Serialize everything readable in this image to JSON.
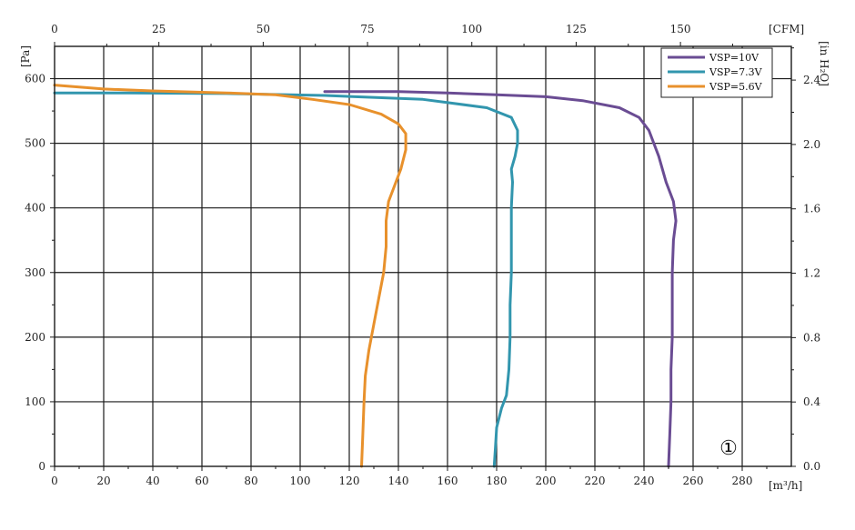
{
  "chart_data": {
    "type": "line",
    "title": "",
    "xlabel": "[m³/h]",
    "ylabel": "[Pa]",
    "x2label": "[CFM]",
    "y2label": "[in H₂O]",
    "xlim": [
      0,
      300
    ],
    "ylim": [
      0,
      650
    ],
    "x_ticks": [
      0,
      20,
      40,
      60,
      80,
      100,
      120,
      140,
      160,
      180,
      200,
      220,
      240,
      260,
      280
    ],
    "y_ticks": [
      0,
      100,
      200,
      300,
      400,
      500,
      600
    ],
    "x2_ticks": [
      0,
      25,
      50,
      75,
      100,
      125,
      150
    ],
    "y2_ticks": [
      "0.0",
      "0.4",
      "0.8",
      "1.2",
      "1.6",
      "2.0",
      "2.4"
    ],
    "grid": true,
    "legend_position": "top-right",
    "annotation": "①",
    "series": [
      {
        "name": "VSP=10V",
        "color": "#6a4c93",
        "points": [
          [
            250,
            0
          ],
          [
            250.5,
            50
          ],
          [
            251,
            100
          ],
          [
            251,
            150
          ],
          [
            251.5,
            200
          ],
          [
            251.5,
            250
          ],
          [
            251.5,
            300
          ],
          [
            252,
            350
          ],
          [
            253,
            380
          ],
          [
            252,
            410
          ],
          [
            249,
            440
          ],
          [
            246,
            480
          ],
          [
            242,
            520
          ],
          [
            238,
            540
          ],
          [
            230,
            555
          ],
          [
            215,
            566
          ],
          [
            200,
            572
          ],
          [
            180,
            575
          ],
          [
            160,
            578
          ],
          [
            140,
            580
          ],
          [
            110,
            580
          ]
        ]
      },
      {
        "name": "VSP=7.3V",
        "color": "#3296ae",
        "points": [
          [
            179,
            0
          ],
          [
            179.5,
            30
          ],
          [
            180,
            60
          ],
          [
            182,
            90
          ],
          [
            184,
            110
          ],
          [
            185,
            150
          ],
          [
            185.5,
            200
          ],
          [
            185.5,
            250
          ],
          [
            186,
            300
          ],
          [
            186,
            350
          ],
          [
            186,
            400
          ],
          [
            186.5,
            440
          ],
          [
            186,
            460
          ],
          [
            187.5,
            480
          ],
          [
            188.5,
            500
          ],
          [
            188.5,
            520
          ],
          [
            186,
            540
          ],
          [
            176,
            555
          ],
          [
            150,
            568
          ],
          [
            110,
            574
          ],
          [
            70,
            577
          ],
          [
            30,
            578
          ],
          [
            0,
            578
          ]
        ]
      },
      {
        "name": "VSP=5.6V",
        "color": "#e8912c",
        "points": [
          [
            125,
            0
          ],
          [
            125.5,
            50
          ],
          [
            126,
            100
          ],
          [
            126.5,
            140
          ],
          [
            128,
            180
          ],
          [
            130,
            220
          ],
          [
            132,
            260
          ],
          [
            134,
            300
          ],
          [
            135,
            340
          ],
          [
            135,
            380
          ],
          [
            136,
            410
          ],
          [
            138,
            430
          ],
          [
            141,
            460
          ],
          [
            143,
            490
          ],
          [
            143,
            515
          ],
          [
            140,
            530
          ],
          [
            133,
            545
          ],
          [
            120,
            560
          ],
          [
            105,
            568
          ],
          [
            90,
            575
          ],
          [
            70,
            578
          ],
          [
            40,
            581
          ],
          [
            20,
            584
          ],
          [
            0,
            590
          ]
        ]
      }
    ]
  }
}
